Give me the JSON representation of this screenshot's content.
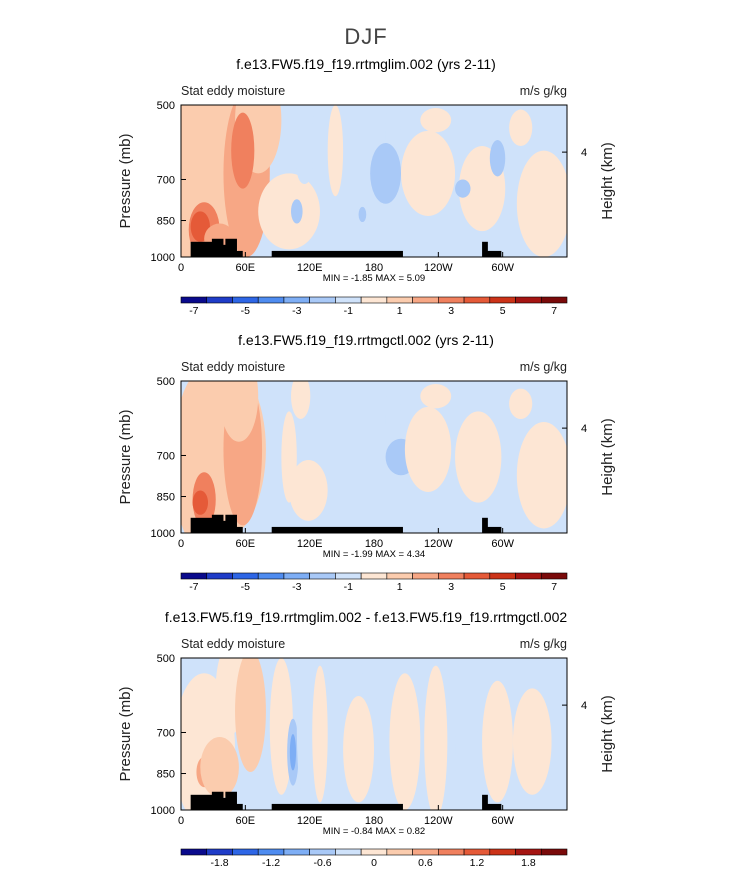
{
  "figure": {
    "title": "DJF"
  },
  "colors": {
    "levels": [
      "#0a0a8c",
      "#1f3cc8",
      "#2e66e6",
      "#4f8cf0",
      "#7eaef5",
      "#a9c9f7",
      "#cfe2fa",
      "#fde6d4",
      "#fbccae",
      "#f7a785",
      "#f0805e",
      "#e55a38",
      "#cc3318",
      "#a51512",
      "#7a0a0a"
    ],
    "land": "#000000"
  },
  "chart_data": [
    {
      "type": "heatmap",
      "title": "f.e13.FW5.f19_f19.rrtmglim.002 (yrs 2-11)",
      "left_label": "Stat eddy moisture",
      "right_label": "m/s g/kg",
      "ylabel": "Pressure (mb)",
      "ylabel_right": "Height (km)",
      "y_ticks": [
        "500",
        "700",
        "850",
        "1000"
      ],
      "y_ticks_right": [
        "4"
      ],
      "x_ticks": [
        "0",
        "60E",
        "120E",
        "180",
        "120W",
        "60W"
      ],
      "stats": "MIN =  -1.85   MAX =    5.09",
      "colorbar_labels": [
        "-7",
        "-5",
        "-3",
        "-1",
        "1",
        "3",
        "5",
        "7"
      ],
      "xlim": [
        0,
        360
      ],
      "ylim": [
        1000,
        500
      ],
      "max": 5.09,
      "min": -1.85
    },
    {
      "type": "heatmap",
      "title": "f.e13.FW5.f19_f19.rrtmgctl.002 (yrs 2-11)",
      "left_label": "Stat eddy moisture",
      "right_label": "m/s g/kg",
      "ylabel": "Pressure (mb)",
      "ylabel_right": "Height (km)",
      "y_ticks": [
        "500",
        "700",
        "850",
        "1000"
      ],
      "y_ticks_right": [
        "4"
      ],
      "x_ticks": [
        "0",
        "60E",
        "120E",
        "180",
        "120W",
        "60W"
      ],
      "stats": "MIN =  -1.99   MAX =    4.34",
      "colorbar_labels": [
        "-7",
        "-5",
        "-3",
        "-1",
        "1",
        "3",
        "5",
        "7"
      ],
      "xlim": [
        0,
        360
      ],
      "ylim": [
        1000,
        500
      ],
      "max": 4.34,
      "min": -1.99
    },
    {
      "type": "heatmap",
      "title": "f.e13.FW5.f19_f19.rrtmglim.002 - f.e13.FW5.f19_f19.rrtmgctl.002",
      "left_label": "Stat eddy moisture",
      "right_label": "m/s g/kg",
      "ylabel": "Pressure (mb)",
      "ylabel_right": "Height (km)",
      "y_ticks": [
        "500",
        "700",
        "850",
        "1000"
      ],
      "y_ticks_right": [
        "4"
      ],
      "x_ticks": [
        "0",
        "60E",
        "120E",
        "180",
        "120W",
        "60W"
      ],
      "stats": "MIN =  -0.84   MAX =    0.82",
      "colorbar_labels": [
        "-1.8",
        "-1.2",
        "-0.6",
        "0",
        "0.6",
        "1.2",
        "1.8"
      ],
      "xlim": [
        0,
        360
      ],
      "ylim": [
        1000,
        500
      ],
      "max": 0.82,
      "min": -0.84
    }
  ]
}
